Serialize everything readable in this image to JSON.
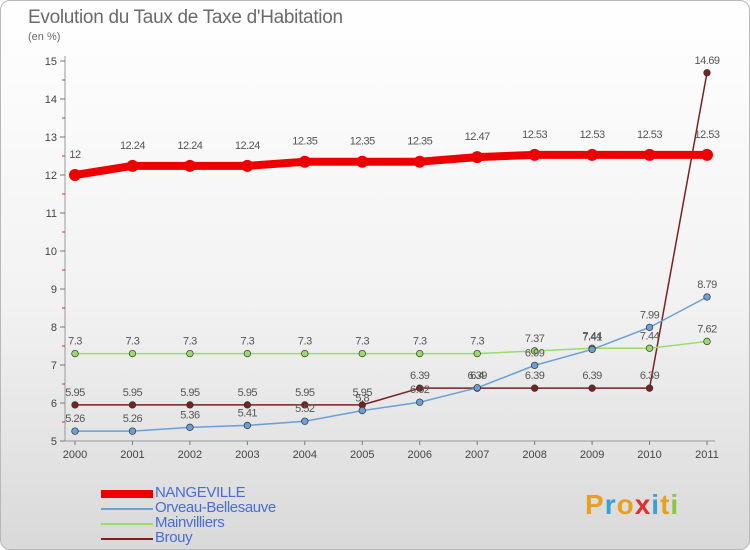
{
  "title": "Evolution du Taux de Taxe d'Habitation",
  "subtitle": "(en %)",
  "logo": {
    "text": "Proxiti",
    "colors": [
      "#e8a020",
      "#3aa0d8",
      "#e8a020",
      "#e03030",
      "#3aa0d8",
      "#e8a020",
      "#8ac640"
    ]
  },
  "chart_data": {
    "type": "line",
    "x": [
      "2000",
      "2001",
      "2002",
      "2003",
      "2004",
      "2005",
      "2006",
      "2007",
      "2008",
      "2009",
      "2010",
      "2011"
    ],
    "ylim": [
      5,
      15
    ],
    "yticks": [
      "5",
      "6",
      "7",
      "8",
      "9",
      "10",
      "11",
      "12",
      "13",
      "14",
      "15"
    ],
    "grid": false,
    "legend_position": "bottom-left",
    "series": [
      {
        "name": "NANGEVILLE",
        "color": "#ee0000",
        "values": [
          12,
          12.24,
          12.24,
          12.24,
          12.35,
          12.35,
          12.35,
          12.47,
          12.53,
          12.53,
          12.53,
          12.53
        ],
        "labels": [
          "12",
          "12.24",
          "12.24",
          "12.24",
          "12.35",
          "12.35",
          "12.35",
          "12.47",
          "12.53",
          "12.53",
          "12.53",
          "12.53"
        ]
      },
      {
        "name": "Orveau-Bellesauve",
        "color": "#6c9fd6",
        "values": [
          5.26,
          5.26,
          5.36,
          5.41,
          5.52,
          5.8,
          6.02,
          6.4,
          6.99,
          7.41,
          7.99,
          8.79
        ],
        "labels": [
          "5.26",
          "5.26",
          "5.36",
          "5.41",
          "5.52",
          "5.8",
          "6.02",
          "6.4",
          "6.99",
          "7.41",
          "7.99",
          "8.79"
        ]
      },
      {
        "name": "Mainvilliers",
        "color": "#99dd66",
        "values": [
          7.3,
          7.3,
          7.3,
          7.3,
          7.3,
          7.3,
          7.3,
          7.3,
          7.37,
          7.44,
          7.44,
          7.62
        ],
        "labels": [
          "7.3",
          "7.3",
          "7.3",
          "7.3",
          "7.3",
          "7.3",
          "7.3",
          "7.3",
          "7.37",
          "7.44",
          "7.44",
          "7.62"
        ]
      },
      {
        "name": "Brouy",
        "color": "#7a2222",
        "values": [
          5.95,
          5.95,
          5.95,
          5.95,
          5.95,
          5.95,
          6.39,
          6.39,
          6.39,
          6.39,
          6.39,
          14.69
        ],
        "labels": [
          "5.95",
          "5.95",
          "5.95",
          "5.95",
          "5.95",
          "5.95",
          "6.39",
          "6.39",
          "6.39",
          "6.39",
          "6.39",
          "14.69"
        ]
      }
    ]
  }
}
